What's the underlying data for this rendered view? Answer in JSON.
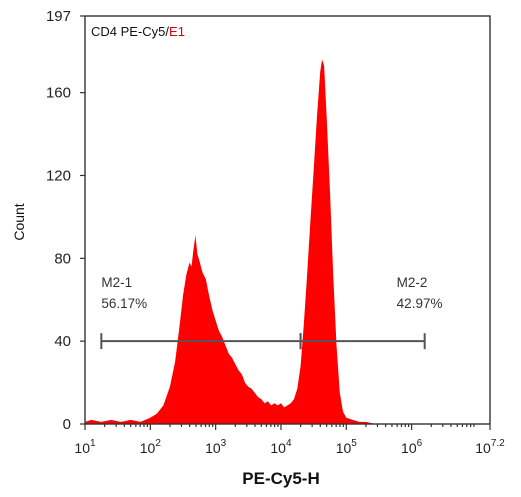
{
  "chart_data": {
    "type": "area",
    "title_parts": [
      {
        "text": "CD4 PE-Cy5/",
        "color": "#111111"
      },
      {
        "text": "E1",
        "color": "#e00000"
      }
    ],
    "xlabel": "PE-Cy5-H",
    "ylabel": "Count",
    "x_scale": "log",
    "xlim_exp": [
      1,
      7.2
    ],
    "x_ticks": [
      {
        "base": "10",
        "exp": "1",
        "e": 1
      },
      {
        "base": "10",
        "exp": "2",
        "e": 2
      },
      {
        "base": "10",
        "exp": "3",
        "e": 3
      },
      {
        "base": "10",
        "exp": "4",
        "e": 4
      },
      {
        "base": "10",
        "exp": "5",
        "e": 5
      },
      {
        "base": "10",
        "exp": "6",
        "e": 6
      },
      {
        "base": "10",
        "exp": "7.2",
        "e": 7.2
      }
    ],
    "ylim": [
      0,
      197
    ],
    "y_ticks": [
      "0",
      "40",
      "80",
      "120",
      "160",
      "197"
    ],
    "fill_color": "#ff0000",
    "series": [
      {
        "values": [
          [
            1.0,
            1
          ],
          [
            1.1,
            2
          ],
          [
            1.25,
            1
          ],
          [
            1.4,
            2
          ],
          [
            1.55,
            1
          ],
          [
            1.7,
            2
          ],
          [
            1.85,
            1
          ],
          [
            2.0,
            3
          ],
          [
            2.1,
            5
          ],
          [
            2.2,
            9
          ],
          [
            2.3,
            18
          ],
          [
            2.38,
            30
          ],
          [
            2.45,
            48
          ],
          [
            2.5,
            62
          ],
          [
            2.55,
            72
          ],
          [
            2.6,
            78
          ],
          [
            2.63,
            76
          ],
          [
            2.66,
            84
          ],
          [
            2.69,
            91
          ],
          [
            2.72,
            82
          ],
          [
            2.75,
            79
          ],
          [
            2.8,
            73
          ],
          [
            2.85,
            70
          ],
          [
            2.9,
            62
          ],
          [
            2.95,
            55
          ],
          [
            3.0,
            50
          ],
          [
            3.05,
            45
          ],
          [
            3.1,
            42
          ],
          [
            3.15,
            38
          ],
          [
            3.2,
            34
          ],
          [
            3.25,
            32
          ],
          [
            3.3,
            29
          ],
          [
            3.35,
            26
          ],
          [
            3.4,
            24
          ],
          [
            3.45,
            20
          ],
          [
            3.5,
            18
          ],
          [
            3.55,
            17
          ],
          [
            3.6,
            15
          ],
          [
            3.65,
            13
          ],
          [
            3.7,
            12
          ],
          [
            3.75,
            10
          ],
          [
            3.8,
            11
          ],
          [
            3.85,
            9
          ],
          [
            3.9,
            10
          ],
          [
            3.95,
            9
          ],
          [
            4.0,
            10
          ],
          [
            4.05,
            8
          ],
          [
            4.1,
            9
          ],
          [
            4.15,
            10
          ],
          [
            4.2,
            12
          ],
          [
            4.25,
            17
          ],
          [
            4.3,
            28
          ],
          [
            4.35,
            48
          ],
          [
            4.4,
            72
          ],
          [
            4.45,
            98
          ],
          [
            4.5,
            122
          ],
          [
            4.55,
            148
          ],
          [
            4.6,
            170
          ],
          [
            4.63,
            176
          ],
          [
            4.66,
            173
          ],
          [
            4.7,
            148
          ],
          [
            4.75,
            112
          ],
          [
            4.8,
            72
          ],
          [
            4.85,
            38
          ],
          [
            4.9,
            15
          ],
          [
            4.95,
            6
          ],
          [
            5.0,
            3
          ],
          [
            5.1,
            2
          ],
          [
            5.2,
            1
          ],
          [
            5.3,
            1
          ],
          [
            5.45,
            0
          ],
          [
            5.7,
            0
          ],
          [
            6.0,
            0
          ],
          [
            6.5,
            0
          ],
          [
            7.2,
            0
          ]
        ]
      }
    ],
    "gates": [
      {
        "name": "M2-1",
        "percent": "56.17%",
        "x_start": 1.25,
        "x_end": 4.3,
        "y": 40
      },
      {
        "name": "M2-2",
        "percent": "42.97%",
        "x_start": 4.3,
        "x_end": 6.2,
        "y": 40
      }
    ]
  }
}
